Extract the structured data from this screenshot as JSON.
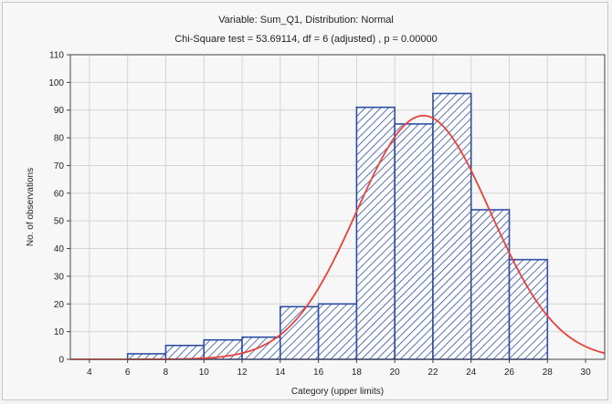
{
  "chart_data": {
    "type": "bar",
    "title": "Variable: Sum_Q1, Distribution: Normal",
    "subtitle": "Chi-Square test = 53.69114, df = 6 (adjusted) , p = 0.00000",
    "xlabel": "Category (upper limits)",
    "ylabel": "No. of observations",
    "xlim": [
      3,
      31
    ],
    "ylim": [
      0,
      110
    ],
    "xticks": [
      4,
      6,
      8,
      10,
      12,
      14,
      16,
      18,
      20,
      22,
      24,
      26,
      28,
      30
    ],
    "yticks": [
      0,
      10,
      20,
      30,
      40,
      50,
      60,
      70,
      80,
      90,
      100,
      110
    ],
    "grid": true,
    "bins": [
      {
        "upper": 6,
        "value": 0
      },
      {
        "upper": 8,
        "value": 2
      },
      {
        "upper": 10,
        "value": 5
      },
      {
        "upper": 12,
        "value": 7
      },
      {
        "upper": 14,
        "value": 8
      },
      {
        "upper": 16,
        "value": 19
      },
      {
        "upper": 18,
        "value": 20
      },
      {
        "upper": 20,
        "value": 91
      },
      {
        "upper": 22,
        "value": 85
      },
      {
        "upper": 24,
        "value": 96
      },
      {
        "upper": 26,
        "value": 54
      },
      {
        "upper": 28,
        "value": 36
      }
    ],
    "fit_curve": {
      "distribution": "normal",
      "mean": 21.5,
      "sd": 3.5,
      "peak": 88,
      "color": "#e8413a"
    },
    "bar_color": "#2e4fa3"
  }
}
